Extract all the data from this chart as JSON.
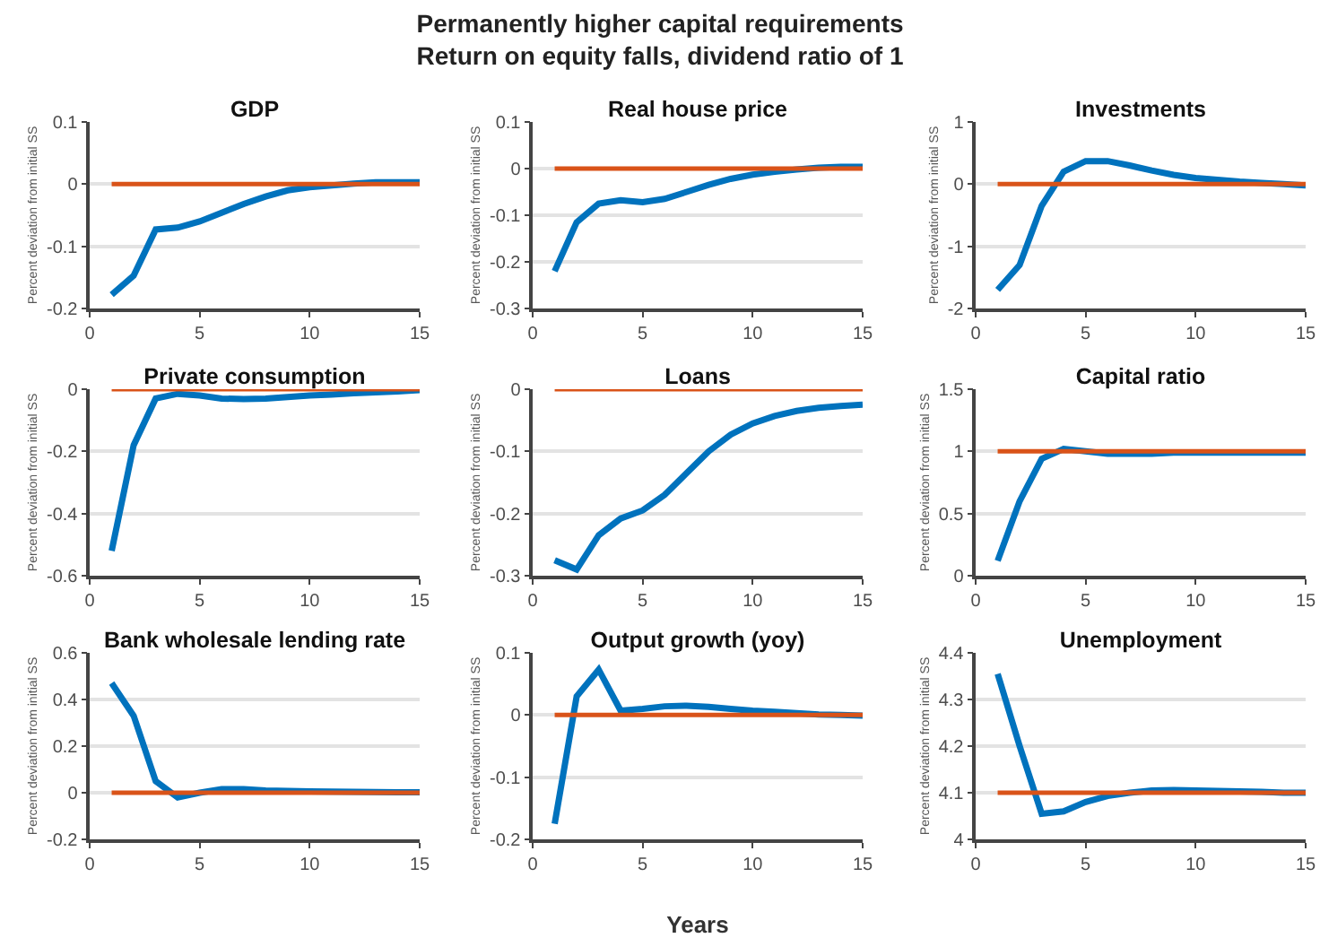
{
  "chart_data": [
    {
      "type": "line",
      "title": "GDP",
      "ylabel": "Percent deviation from initial SS",
      "annotations": [
        "Permanently higher capital requirements\nReturn on equity falls, dividend ratio of 1"
      ],
      "x": [
        1,
        2,
        3,
        4,
        5,
        6,
        7,
        8,
        9,
        10,
        11,
        12,
        13,
        14,
        15
      ],
      "xlim": [
        0,
        15
      ],
      "xticks": [
        0,
        5,
        10,
        15
      ],
      "ylim": [
        -0.2,
        0.1
      ],
      "yticks": [
        -0.2,
        -0.1,
        0,
        0.1
      ],
      "grid": "y",
      "series": [
        {
          "color": "#0072bd",
          "values": [
            -0.178,
            -0.147,
            -0.073,
            -0.07,
            -0.06,
            -0.046,
            -0.032,
            -0.02,
            -0.01,
            -0.005,
            -0.002,
            0.001,
            0.003,
            0.003,
            0.003
          ]
        },
        {
          "color": "#d95319",
          "values": [
            0,
            0,
            0,
            0,
            0,
            0,
            0,
            0,
            0,
            0,
            0,
            0,
            0,
            0,
            0
          ]
        }
      ]
    },
    {
      "type": "line",
      "title": "Real house price",
      "ylabel": "Percent deviation from initial SS",
      "x": [
        1,
        2,
        3,
        4,
        5,
        6,
        7,
        8,
        9,
        10,
        11,
        12,
        13,
        14,
        15
      ],
      "xlim": [
        0,
        15
      ],
      "xticks": [
        0,
        5,
        10,
        15
      ],
      "ylim": [
        -0.3,
        0.1
      ],
      "yticks": [
        -0.3,
        -0.2,
        -0.1,
        0,
        0.1
      ],
      "grid": "y",
      "series": [
        {
          "color": "#0072bd",
          "values": [
            -0.22,
            -0.115,
            -0.075,
            -0.068,
            -0.072,
            -0.065,
            -0.05,
            -0.035,
            -0.022,
            -0.013,
            -0.007,
            -0.002,
            0.002,
            0.004,
            0.004
          ]
        },
        {
          "color": "#d95319",
          "values": [
            0,
            0,
            0,
            0,
            0,
            0,
            0,
            0,
            0,
            0,
            0,
            0,
            0,
            0,
            0
          ]
        }
      ]
    },
    {
      "type": "line",
      "title": "Investments",
      "ylabel": "Percent deviation from initial SS",
      "x": [
        1,
        2,
        3,
        4,
        5,
        6,
        7,
        8,
        9,
        10,
        11,
        12,
        13,
        14,
        15
      ],
      "xlim": [
        0,
        15
      ],
      "xticks": [
        0,
        5,
        10,
        15
      ],
      "ylim": [
        -2,
        1
      ],
      "yticks": [
        -2,
        -1,
        0,
        1
      ],
      "grid": "y",
      "series": [
        {
          "color": "#0072bd",
          "values": [
            -1.7,
            -1.3,
            -0.35,
            0.2,
            0.37,
            0.37,
            0.3,
            0.22,
            0.15,
            0.1,
            0.07,
            0.04,
            0.02,
            0,
            -0.02
          ]
        },
        {
          "color": "#d95319",
          "values": [
            0,
            0,
            0,
            0,
            0,
            0,
            0,
            0,
            0,
            0,
            0,
            0,
            0,
            0,
            0
          ]
        }
      ]
    },
    {
      "type": "line",
      "title": "Private consumption",
      "ylabel": "Percent deviation from initial SS",
      "x": [
        1,
        2,
        3,
        4,
        5,
        6,
        7,
        8,
        9,
        10,
        11,
        12,
        13,
        14,
        15
      ],
      "xlim": [
        0,
        15
      ],
      "xticks": [
        0,
        5,
        10,
        15
      ],
      "ylim": [
        -0.6,
        0
      ],
      "yticks": [
        -0.6,
        -0.4,
        -0.2,
        0
      ],
      "grid": "y",
      "series": [
        {
          "color": "#0072bd",
          "values": [
            -0.52,
            -0.18,
            -0.03,
            -0.015,
            -0.02,
            -0.03,
            -0.032,
            -0.03,
            -0.025,
            -0.02,
            -0.017,
            -0.013,
            -0.01,
            -0.007,
            -0.003
          ]
        },
        {
          "color": "#d95319",
          "values": [
            0,
            0,
            0,
            0,
            0,
            0,
            0,
            0,
            0,
            0,
            0,
            0,
            0,
            0,
            0
          ]
        }
      ]
    },
    {
      "type": "line",
      "title": "Loans",
      "ylabel": "Percent deviation from initial SS",
      "x": [
        1,
        2,
        3,
        4,
        5,
        6,
        7,
        8,
        9,
        10,
        11,
        12,
        13,
        14,
        15
      ],
      "xlim": [
        0,
        15
      ],
      "xticks": [
        0,
        5,
        10,
        15
      ],
      "ylim": [
        -0.3,
        0
      ],
      "yticks": [
        -0.3,
        -0.2,
        -0.1,
        0
      ],
      "grid": "y",
      "series": [
        {
          "color": "#0072bd",
          "values": [
            -0.275,
            -0.29,
            -0.235,
            -0.208,
            -0.195,
            -0.17,
            -0.135,
            -0.1,
            -0.073,
            -0.055,
            -0.043,
            -0.035,
            -0.03,
            -0.027,
            -0.025
          ]
        },
        {
          "color": "#d95319",
          "values": [
            0,
            0,
            0,
            0,
            0,
            0,
            0,
            0,
            0,
            0,
            0,
            0,
            0,
            0,
            0
          ]
        }
      ]
    },
    {
      "type": "line",
      "title": "Capital ratio",
      "ylabel": "Percent deviation from initial SS",
      "x": [
        1,
        2,
        3,
        4,
        5,
        6,
        7,
        8,
        9,
        10,
        11,
        12,
        13,
        14,
        15
      ],
      "xlim": [
        0,
        15
      ],
      "xticks": [
        0,
        5,
        10,
        15
      ],
      "ylim": [
        0,
        1.5
      ],
      "yticks": [
        0,
        0.5,
        1,
        1.5
      ],
      "grid": "y",
      "series": [
        {
          "color": "#0072bd",
          "values": [
            0.12,
            0.6,
            0.94,
            1.02,
            1.0,
            0.98,
            0.98,
            0.98,
            0.99,
            0.99,
            0.99,
            0.99,
            0.99,
            0.99,
            0.99
          ]
        },
        {
          "color": "#d95319",
          "values": [
            1,
            1,
            1,
            1,
            1,
            1,
            1,
            1,
            1,
            1,
            1,
            1,
            1,
            1,
            1
          ]
        }
      ]
    },
    {
      "type": "line",
      "title": "Bank wholesale lending rate",
      "ylabel": "Percent deviation from initial SS",
      "x": [
        1,
        2,
        3,
        4,
        5,
        6,
        7,
        8,
        9,
        10,
        11,
        12,
        13,
        14,
        15
      ],
      "xlim": [
        0,
        15
      ],
      "xticks": [
        0,
        5,
        10,
        15
      ],
      "ylim": [
        -0.2,
        0.6
      ],
      "yticks": [
        -0.2,
        0,
        0.2,
        0.4,
        0.6
      ],
      "grid": "y",
      "series": [
        {
          "color": "#0072bd",
          "values": [
            0.47,
            0.33,
            0.05,
            -0.02,
            0,
            0.015,
            0.015,
            0.01,
            0.008,
            0.006,
            0.005,
            0.004,
            0.003,
            0.002,
            0.002
          ]
        },
        {
          "color": "#d95319",
          "values": [
            0,
            0,
            0,
            0,
            0,
            0,
            0,
            0,
            0,
            0,
            0,
            0,
            0,
            0,
            0
          ]
        }
      ]
    },
    {
      "type": "line",
      "title": "Output growth (yoy)",
      "ylabel": "Percent deviation from initial SS",
      "xlabel": "Years",
      "x": [
        1,
        2,
        3,
        4,
        5,
        6,
        7,
        8,
        9,
        10,
        11,
        12,
        13,
        14,
        15
      ],
      "xlim": [
        0,
        15
      ],
      "xticks": [
        0,
        5,
        10,
        15
      ],
      "ylim": [
        -0.2,
        0.1
      ],
      "yticks": [
        -0.2,
        -0.1,
        0,
        0.1
      ],
      "grid": "y",
      "series": [
        {
          "color": "#0072bd",
          "values": [
            -0.175,
            0.03,
            0.073,
            0.007,
            0.01,
            0.014,
            0.015,
            0.013,
            0.01,
            0.007,
            0.005,
            0.003,
            0.001,
            0,
            -0.001
          ]
        },
        {
          "color": "#d95319",
          "values": [
            0,
            0,
            0,
            0,
            0,
            0,
            0,
            0,
            0,
            0,
            0,
            0,
            0,
            0,
            0
          ]
        }
      ]
    },
    {
      "type": "line",
      "title": "Unemployment",
      "ylabel": "Percent deviation from initial SS",
      "x": [
        1,
        2,
        3,
        4,
        5,
        6,
        7,
        8,
        9,
        10,
        11,
        12,
        13,
        14,
        15
      ],
      "xlim": [
        0,
        15
      ],
      "xticks": [
        0,
        5,
        10,
        15
      ],
      "ylim": [
        4,
        4.4
      ],
      "yticks": [
        4,
        4.1,
        4.2,
        4.3,
        4.4
      ],
      "grid": "y",
      "series": [
        {
          "color": "#0072bd",
          "values": [
            4.355,
            4.2,
            4.055,
            4.06,
            4.08,
            4.093,
            4.1,
            4.105,
            4.106,
            4.105,
            4.104,
            4.103,
            4.102,
            4.1,
            4.1
          ]
        },
        {
          "color": "#d95319",
          "values": [
            4.1,
            4.1,
            4.1,
            4.1,
            4.1,
            4.1,
            4.1,
            4.1,
            4.1,
            4.1,
            4.1,
            4.1,
            4.1,
            4.1,
            4.1
          ]
        }
      ]
    }
  ]
}
